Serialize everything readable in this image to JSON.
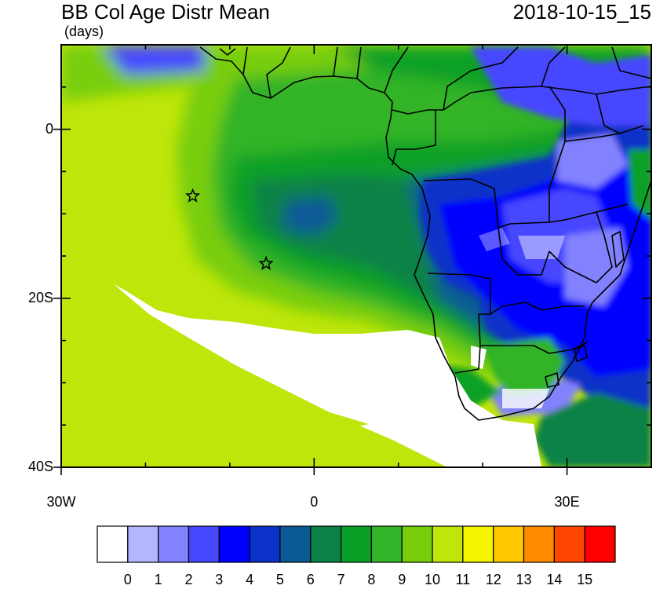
{
  "header": {
    "title": "BB Col Age Distr Mean",
    "units": "(days)",
    "timestamp": "2018-10-15_15"
  },
  "map": {
    "lat_range": [
      -40,
      10
    ],
    "lon_range": [
      -30,
      40
    ],
    "lat_ticks": [
      {
        "value": 0,
        "label": "0"
      },
      {
        "value": -20,
        "label": "20S"
      },
      {
        "value": -40,
        "label": "40S"
      }
    ],
    "lon_ticks": [
      {
        "value": -30,
        "label": "30W"
      },
      {
        "value": 0,
        "label": "0"
      },
      {
        "value": 30,
        "label": "30E"
      }
    ],
    "markers": [
      {
        "type": "star",
        "lon": -14.4,
        "lat": -7.9
      },
      {
        "type": "star",
        "lon": -5.7,
        "lat": -15.9
      }
    ]
  },
  "colorbar": {
    "labels": [
      "0",
      "1",
      "2",
      "3",
      "4",
      "5",
      "6",
      "7",
      "8",
      "9",
      "10",
      "11",
      "12",
      "13",
      "14",
      "15"
    ],
    "colors": [
      "#ffffff",
      "#b4b4ff",
      "#8282ff",
      "#4646ff",
      "#0000ff",
      "#0a32c8",
      "#0a5a96",
      "#0a8246",
      "#0aa028",
      "#32b428",
      "#78cd0a",
      "#bee60a",
      "#f5f500",
      "#ffc800",
      "#ff8c00",
      "#ff4600",
      "#ff0000"
    ]
  }
}
